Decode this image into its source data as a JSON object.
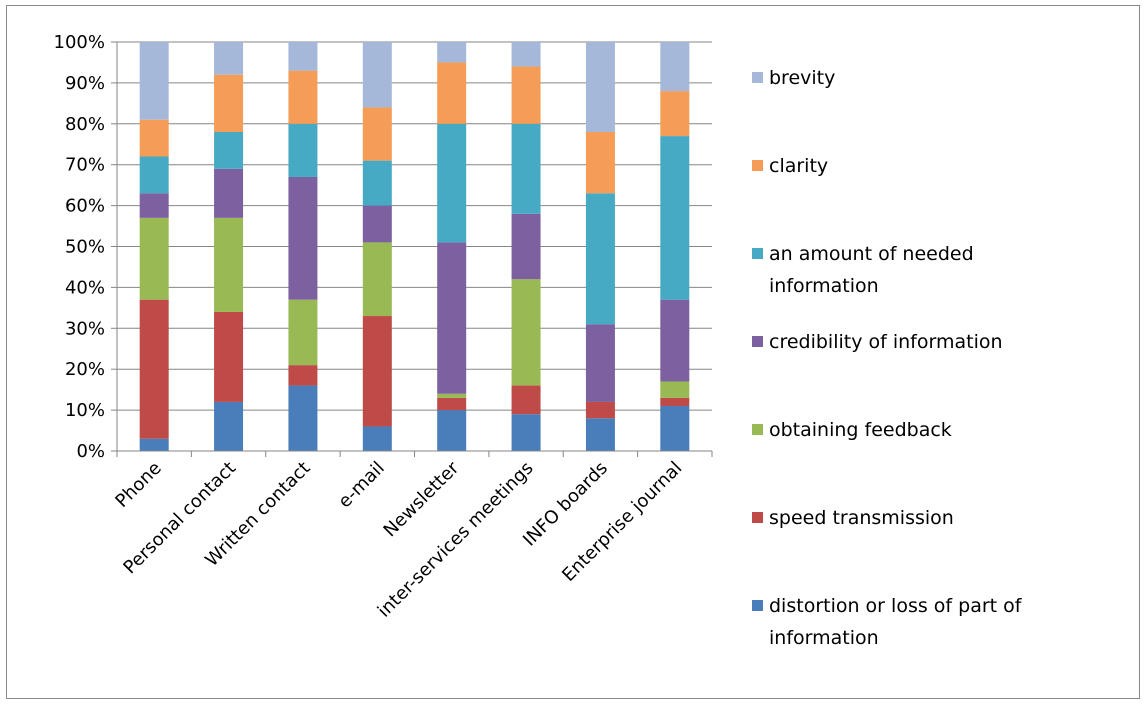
{
  "chart_data": {
    "type": "bar",
    "stacked": "percent",
    "categories": [
      "Phone",
      "Personal contact",
      "Written contact",
      "e-mail",
      "Newsletter",
      "inter-services meetings",
      "INFO boards",
      "Enterprise journal"
    ],
    "series": [
      {
        "name": "distortion or loss of part of information",
        "color": "#4a7ebb",
        "values": [
          3,
          12,
          16,
          6,
          10,
          9,
          8,
          11
        ]
      },
      {
        "name": "speed transmission",
        "color": "#be4b48",
        "values": [
          34,
          22,
          5,
          27,
          3,
          7,
          4,
          2
        ]
      },
      {
        "name": "obtaining feedback",
        "color": "#98b954",
        "values": [
          20,
          23,
          16,
          18,
          1,
          26,
          0,
          4
        ]
      },
      {
        "name": "credibility of information",
        "color": "#7d60a0",
        "values": [
          6,
          12,
          30,
          9,
          37,
          16,
          19,
          20
        ]
      },
      {
        "name": "an amount of needed information",
        "color": "#46aac5",
        "values": [
          9,
          9,
          13,
          11,
          29,
          22,
          32,
          40
        ]
      },
      {
        "name": "clarity",
        "color": "#f59d56",
        "values": [
          9,
          14,
          13,
          13,
          15,
          14,
          15,
          11
        ]
      },
      {
        "name": "brevity",
        "color": "#a5b8d9",
        "values": [
          19,
          8,
          7,
          16,
          5,
          6,
          22,
          12
        ]
      }
    ],
    "yticks": [
      "0%",
      "10%",
      "20%",
      "30%",
      "40%",
      "50%",
      "60%",
      "70%",
      "80%",
      "90%",
      "100%"
    ],
    "ylim": [
      0,
      100
    ],
    "legend_position": "right",
    "legend_order": [
      {
        "label_lines": [
          "brevity"
        ],
        "color": "#a5b8d9"
      },
      {
        "label_lines": [
          " clarity"
        ],
        "color": "#f59d56"
      },
      {
        "label_lines": [
          " an amount of needed",
          "information"
        ],
        "color": "#46aac5"
      },
      {
        "label_lines": [
          "credibility of information"
        ],
        "color": "#7d60a0"
      },
      {
        "label_lines": [
          "obtaining feedback"
        ],
        "color": "#98b954"
      },
      {
        "label_lines": [
          "speed transmission"
        ],
        "color": "#be4b48"
      },
      {
        "label_lines": [
          " distortion or loss of part of",
          "information"
        ],
        "color": "#4a7ebb"
      }
    ],
    "grid": true
  }
}
